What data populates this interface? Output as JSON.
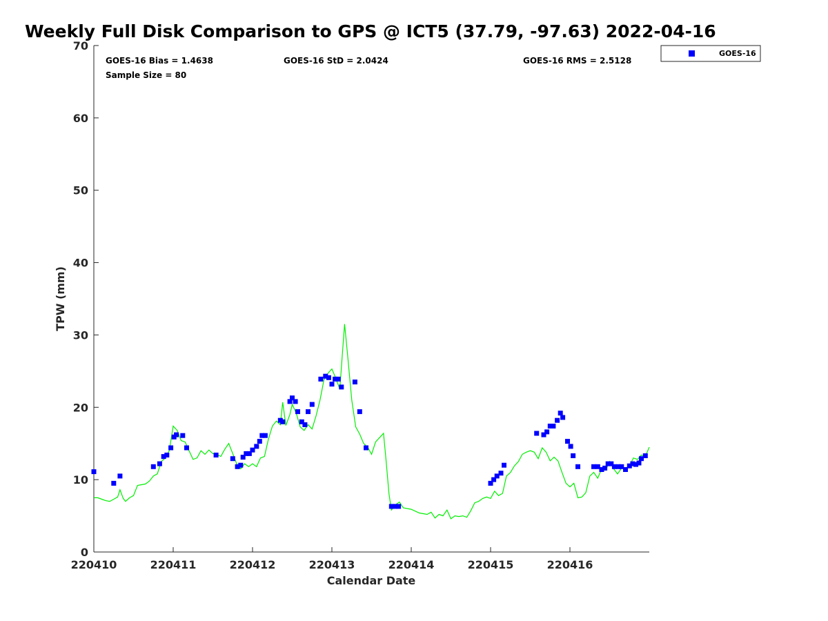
{
  "chart_data": {
    "type": "scatter",
    "title": "Weekly Full Disk Comparison to GPS @ ICT5 (37.79, -97.63) 2022-04-16",
    "xlabel": "Calendar Date",
    "ylabel": "TPW (mm)",
    "xlim": [
      0,
      7
    ],
    "ylim": [
      0,
      70
    ],
    "x_ticks": [
      {
        "pos": 0,
        "label": "220410"
      },
      {
        "pos": 1,
        "label": "220411"
      },
      {
        "pos": 2,
        "label": "220412"
      },
      {
        "pos": 3,
        "label": "220413"
      },
      {
        "pos": 4,
        "label": "220414"
      },
      {
        "pos": 5,
        "label": "220415"
      },
      {
        "pos": 6,
        "label": "220416"
      }
    ],
    "y_ticks": [
      0,
      10,
      20,
      30,
      40,
      50,
      60,
      70
    ],
    "grid": false,
    "legend_placement": "outside-top-right",
    "stats": {
      "bias": "GOES-16 Bias = 1.4638",
      "std": "GOES-16 StD = 2.0424",
      "rms": "GOES-16 RMS = 2.5128",
      "sample": "Sample Size = 80"
    },
    "series": [
      {
        "name": "GOES-16",
        "kind": "markers",
        "color": "#0000ff",
        "points": [
          [
            0.0,
            11.1
          ],
          [
            0.25,
            9.5
          ],
          [
            0.33,
            10.5
          ],
          [
            0.75,
            11.8
          ],
          [
            0.83,
            12.2
          ],
          [
            0.88,
            13.2
          ],
          [
            0.92,
            13.4
          ],
          [
            0.97,
            14.4
          ],
          [
            1.01,
            15.9
          ],
          [
            1.04,
            16.2
          ],
          [
            1.12,
            16.1
          ],
          [
            1.17,
            14.4
          ],
          [
            1.54,
            13.4
          ],
          [
            1.75,
            12.9
          ],
          [
            1.81,
            11.8
          ],
          [
            1.85,
            12.0
          ],
          [
            1.88,
            13.1
          ],
          [
            1.92,
            13.6
          ],
          [
            1.96,
            13.6
          ],
          [
            2.0,
            14.1
          ],
          [
            2.05,
            14.6
          ],
          [
            2.09,
            15.3
          ],
          [
            2.12,
            16.1
          ],
          [
            2.16,
            16.1
          ],
          [
            2.35,
            18.2
          ],
          [
            2.38,
            18.0
          ],
          [
            2.47,
            20.8
          ],
          [
            2.5,
            21.3
          ],
          [
            2.54,
            20.8
          ],
          [
            2.57,
            19.4
          ],
          [
            2.62,
            18.0
          ],
          [
            2.66,
            17.6
          ],
          [
            2.7,
            19.4
          ],
          [
            2.75,
            20.4
          ],
          [
            2.86,
            23.9
          ],
          [
            2.92,
            24.3
          ],
          [
            2.96,
            24.1
          ],
          [
            3.0,
            23.2
          ],
          [
            3.04,
            23.9
          ],
          [
            3.08,
            23.9
          ],
          [
            3.12,
            22.8
          ],
          [
            3.29,
            23.5
          ],
          [
            3.35,
            19.4
          ],
          [
            3.43,
            14.4
          ],
          [
            3.75,
            6.3
          ],
          [
            3.8,
            6.3
          ],
          [
            3.84,
            6.3
          ],
          [
            5.0,
            9.5
          ],
          [
            5.04,
            10.0
          ],
          [
            5.08,
            10.5
          ],
          [
            5.13,
            10.9
          ],
          [
            5.17,
            12.0
          ],
          [
            5.58,
            16.4
          ],
          [
            5.67,
            16.2
          ],
          [
            5.71,
            16.6
          ],
          [
            5.75,
            17.4
          ],
          [
            5.79,
            17.4
          ],
          [
            5.84,
            18.2
          ],
          [
            5.88,
            19.2
          ],
          [
            5.91,
            18.6
          ],
          [
            5.97,
            15.3
          ],
          [
            6.01,
            14.6
          ],
          [
            6.04,
            13.3
          ],
          [
            6.1,
            11.8
          ],
          [
            6.3,
            11.8
          ],
          [
            6.35,
            11.8
          ],
          [
            6.4,
            11.4
          ],
          [
            6.44,
            11.6
          ],
          [
            6.48,
            12.2
          ],
          [
            6.52,
            12.2
          ],
          [
            6.56,
            11.8
          ],
          [
            6.61,
            11.8
          ],
          [
            6.65,
            11.8
          ],
          [
            6.7,
            11.4
          ],
          [
            6.75,
            11.9
          ],
          [
            6.79,
            12.2
          ],
          [
            6.83,
            12.1
          ],
          [
            6.87,
            12.3
          ],
          [
            6.9,
            12.9
          ],
          [
            6.95,
            13.3
          ]
        ]
      },
      {
        "name": "",
        "kind": "line",
        "color": "#00ee00",
        "points": [
          [
            0.0,
            7.5
          ],
          [
            0.05,
            7.5
          ],
          [
            0.1,
            7.3
          ],
          [
            0.15,
            7.1
          ],
          [
            0.2,
            7.0
          ],
          [
            0.25,
            7.3
          ],
          [
            0.3,
            7.6
          ],
          [
            0.33,
            8.6
          ],
          [
            0.37,
            7.4
          ],
          [
            0.4,
            7.0
          ],
          [
            0.45,
            7.5
          ],
          [
            0.5,
            7.8
          ],
          [
            0.55,
            9.2
          ],
          [
            0.6,
            9.3
          ],
          [
            0.65,
            9.4
          ],
          [
            0.7,
            9.8
          ],
          [
            0.75,
            10.5
          ],
          [
            0.8,
            10.8
          ],
          [
            0.85,
            12.5
          ],
          [
            0.9,
            13.0
          ],
          [
            0.95,
            14.0
          ],
          [
            1.0,
            17.4
          ],
          [
            1.05,
            16.8
          ],
          [
            1.1,
            15.4
          ],
          [
            1.15,
            15.2
          ],
          [
            1.2,
            14.0
          ],
          [
            1.25,
            12.8
          ],
          [
            1.3,
            13.0
          ],
          [
            1.35,
            14.0
          ],
          [
            1.4,
            13.5
          ],
          [
            1.45,
            14.1
          ],
          [
            1.5,
            13.6
          ],
          [
            1.55,
            13.5
          ],
          [
            1.6,
            13.2
          ],
          [
            1.65,
            14.2
          ],
          [
            1.7,
            15.0
          ],
          [
            1.75,
            13.6
          ],
          [
            1.8,
            12.2
          ],
          [
            1.85,
            11.5
          ],
          [
            1.9,
            12.2
          ],
          [
            1.95,
            11.8
          ],
          [
            2.0,
            12.2
          ],
          [
            2.05,
            11.8
          ],
          [
            2.1,
            13.0
          ],
          [
            2.15,
            13.2
          ],
          [
            2.2,
            15.6
          ],
          [
            2.25,
            17.4
          ],
          [
            2.3,
            18.1
          ],
          [
            2.35,
            17.6
          ],
          [
            2.38,
            20.7
          ],
          [
            2.42,
            17.5
          ],
          [
            2.47,
            19.0
          ],
          [
            2.5,
            20.4
          ],
          [
            2.55,
            19.2
          ],
          [
            2.6,
            17.3
          ],
          [
            2.65,
            16.8
          ],
          [
            2.7,
            17.6
          ],
          [
            2.75,
            17.0
          ],
          [
            2.8,
            18.8
          ],
          [
            2.85,
            21.0
          ],
          [
            2.9,
            23.8
          ],
          [
            2.95,
            24.7
          ],
          [
            3.0,
            25.3
          ],
          [
            3.05,
            24.0
          ],
          [
            3.1,
            22.5
          ],
          [
            3.13,
            27.0
          ],
          [
            3.16,
            31.5
          ],
          [
            3.2,
            27.0
          ],
          [
            3.25,
            21.0
          ],
          [
            3.3,
            17.3
          ],
          [
            3.35,
            16.3
          ],
          [
            3.4,
            15.0
          ],
          [
            3.45,
            14.5
          ],
          [
            3.5,
            13.5
          ],
          [
            3.55,
            15.2
          ],
          [
            3.6,
            15.8
          ],
          [
            3.65,
            16.4
          ],
          [
            3.68,
            13.0
          ],
          [
            3.72,
            8.0
          ],
          [
            3.75,
            5.8
          ],
          [
            3.8,
            6.5
          ],
          [
            3.85,
            6.9
          ],
          [
            3.9,
            6.1
          ],
          [
            4.0,
            5.9
          ],
          [
            4.1,
            5.4
          ],
          [
            4.2,
            5.2
          ],
          [
            4.25,
            5.5
          ],
          [
            4.3,
            4.7
          ],
          [
            4.35,
            5.2
          ],
          [
            4.4,
            5.0
          ],
          [
            4.45,
            5.8
          ],
          [
            4.5,
            4.6
          ],
          [
            4.55,
            5.0
          ],
          [
            4.6,
            4.9
          ],
          [
            4.65,
            5.0
          ],
          [
            4.7,
            4.8
          ],
          [
            4.75,
            5.7
          ],
          [
            4.8,
            6.8
          ],
          [
            4.85,
            7.0
          ],
          [
            4.9,
            7.4
          ],
          [
            4.95,
            7.6
          ],
          [
            5.0,
            7.4
          ],
          [
            5.05,
            8.4
          ],
          [
            5.1,
            7.8
          ],
          [
            5.15,
            8.1
          ],
          [
            5.2,
            10.5
          ],
          [
            5.25,
            11.0
          ],
          [
            5.3,
            11.9
          ],
          [
            5.35,
            12.5
          ],
          [
            5.4,
            13.5
          ],
          [
            5.45,
            13.8
          ],
          [
            5.5,
            14.0
          ],
          [
            5.55,
            13.8
          ],
          [
            5.6,
            12.9
          ],
          [
            5.65,
            14.4
          ],
          [
            5.7,
            13.8
          ],
          [
            5.75,
            12.6
          ],
          [
            5.8,
            13.1
          ],
          [
            5.85,
            12.6
          ],
          [
            5.9,
            11.0
          ],
          [
            5.95,
            9.5
          ],
          [
            6.0,
            9.0
          ],
          [
            6.05,
            9.5
          ],
          [
            6.1,
            7.5
          ],
          [
            6.15,
            7.6
          ],
          [
            6.2,
            8.2
          ],
          [
            6.25,
            10.5
          ],
          [
            6.3,
            11.0
          ],
          [
            6.35,
            10.2
          ],
          [
            6.4,
            11.5
          ],
          [
            6.45,
            11.3
          ],
          [
            6.5,
            12.5
          ],
          [
            6.55,
            11.5
          ],
          [
            6.6,
            10.8
          ],
          [
            6.65,
            11.6
          ],
          [
            6.7,
            11.6
          ],
          [
            6.75,
            11.9
          ],
          [
            6.8,
            13.0
          ],
          [
            6.85,
            12.8
          ],
          [
            6.9,
            13.4
          ],
          [
            6.95,
            13.2
          ],
          [
            7.0,
            14.5
          ]
        ]
      }
    ]
  }
}
